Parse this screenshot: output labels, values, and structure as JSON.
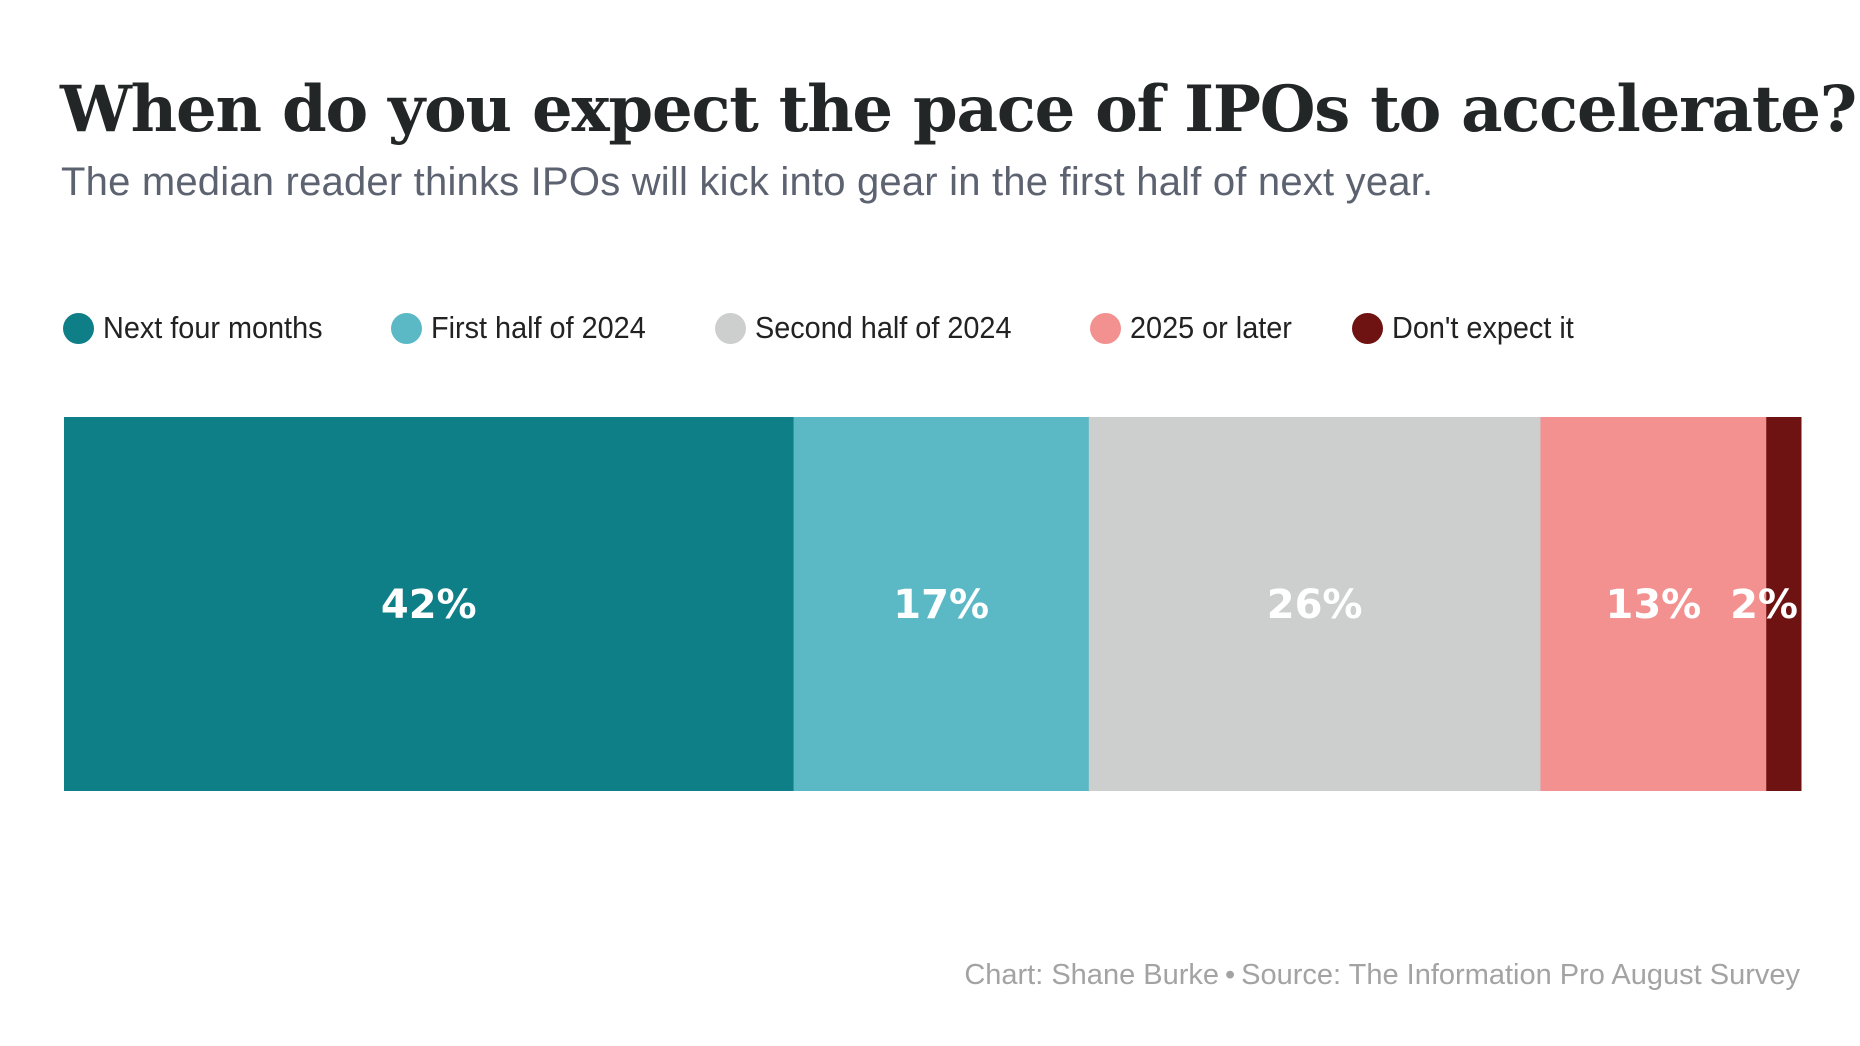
{
  "header": {
    "title": "When do you expect the pace of IPOs to accelerate?",
    "subtitle": "The median reader thinks IPOs will kick into gear in the first half of next year."
  },
  "chart_data": {
    "type": "bar",
    "orientation": "horizontal-stacked-100",
    "title": "When do you expect the pace of IPOs to accelerate?",
    "subtitle": "The median reader thinks IPOs will kick into gear in the first half of next year.",
    "xlabel": "",
    "ylabel": "",
    "xlim": [
      0,
      100
    ],
    "grid": false,
    "legend_position": "top-left",
    "categories": [
      "Next four months",
      "First half of 2024",
      "Second half of 2024",
      "2025 or later",
      "Don't expect it"
    ],
    "values": [
      42,
      17,
      26,
      13,
      2
    ],
    "series": [
      {
        "name": "Next four months",
        "value": 42,
        "label": "42%",
        "color": "#0e7e87"
      },
      {
        "name": "First half of 2024",
        "value": 17,
        "label": "17%",
        "color": "#5bb9c5"
      },
      {
        "name": "Second half of 2024",
        "value": 26,
        "label": "26%",
        "color": "#cdcfce"
      },
      {
        "name": "2025 or later",
        "value": 13,
        "label": "13%",
        "color": "#f29190"
      },
      {
        "name": "Don't expect it",
        "value": 2,
        "label": "2%",
        "color": "#6e1212"
      }
    ],
    "data_label_color": "#ffffff"
  },
  "legend": {
    "items": [
      {
        "label": "Next four months",
        "color": "#0e7e87"
      },
      {
        "label": "First half of 2024",
        "color": "#5bb9c5"
      },
      {
        "label": "Second half of 2024",
        "color": "#cdcfce"
      },
      {
        "label": "2025 or later",
        "color": "#f29190"
      },
      {
        "label": "Don't expect it",
        "color": "#6e1212"
      }
    ]
  },
  "footer": {
    "credit": "Chart: Shane Burke",
    "separator": "•",
    "source": "Source: The Information Pro August Survey"
  }
}
